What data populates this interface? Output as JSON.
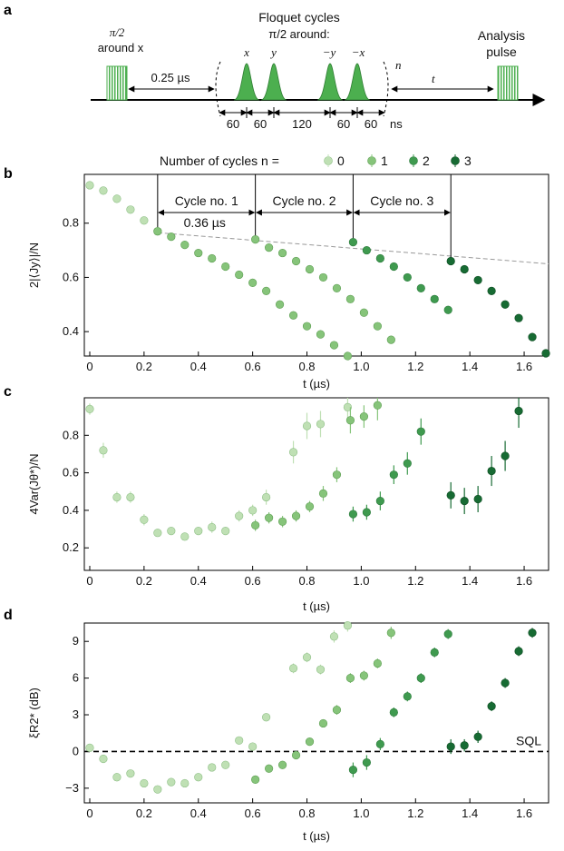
{
  "colors": {
    "n0": "#bfe0b4",
    "n1": "#86c47a",
    "n2": "#3f9a4f",
    "n3": "#176b33",
    "pulse": "#4caf4f",
    "dash": "#999999"
  },
  "panel_a": {
    "label": "a",
    "first_pulse_line1": "π/2",
    "first_pulse_line2": "around x",
    "delay_label": "0.25 µs",
    "floquet_title": "Floquet cycles",
    "floquet_sub": "π/2 around:",
    "axes": [
      "x",
      "y",
      "−y",
      "−x"
    ],
    "n_label": "n",
    "t_label": "t",
    "analysis_line1": "Analysis",
    "analysis_line2": "pulse",
    "durations": [
      "60",
      "60",
      "120",
      "60",
      "60"
    ],
    "unit": "ns"
  },
  "legend": {
    "title": "Number of cycles n =",
    "items": [
      "0",
      "1",
      "2",
      "3"
    ]
  },
  "chart_data": [
    {
      "panel": "b",
      "type": "scatter",
      "xlabel": "t (µs)",
      "ylabel": "2|⟨Jy⟩|/N",
      "xlim": [
        -0.02,
        1.69
      ],
      "ylim": [
        0.31,
        0.98
      ],
      "xticks": [
        "0",
        "0.2",
        "0.4",
        "0.6",
        "0.8",
        "1.0",
        "1.2",
        "1.4",
        "1.6"
      ],
      "yticks": [
        "0.4",
        "0.6",
        "0.8"
      ],
      "cycle_labels": [
        "Cycle no. 1",
        "Cycle no. 2",
        "Cycle no. 3"
      ],
      "cycle_boundaries": [
        0.25,
        0.61,
        0.97,
        1.33
      ],
      "cycle_duration_label": "0.36 µs",
      "trend_line": {
        "x": [
          0.25,
          1.69
        ],
        "y": [
          0.765,
          0.65
        ]
      },
      "series": [
        {
          "name": "0",
          "x": [
            0.0,
            0.05,
            0.1,
            0.15,
            0.2,
            0.25
          ],
          "y": [
            0.94,
            0.92,
            0.89,
            0.85,
            0.81,
            0.77
          ]
        },
        {
          "name": "1",
          "x": [
            0.25,
            0.3,
            0.35,
            0.4,
            0.45,
            0.5,
            0.55,
            0.6,
            0.65,
            0.7,
            0.75,
            0.8,
            0.85,
            0.9,
            0.95
          ],
          "y": [
            0.77,
            0.75,
            0.72,
            0.69,
            0.67,
            0.64,
            0.61,
            0.58,
            0.55,
            0.5,
            0.46,
            0.42,
            0.39,
            0.35,
            0.31
          ]
        },
        {
          "name": "1",
          "x": [
            0.61,
            0.66,
            0.71,
            0.76,
            0.81,
            0.86,
            0.91,
            0.96,
            1.01,
            1.06,
            1.11
          ],
          "y": [
            0.74,
            0.71,
            0.69,
            0.66,
            0.63,
            0.6,
            0.56,
            0.52,
            0.47,
            0.42,
            0.37
          ]
        },
        {
          "name": "2",
          "x": [
            0.97,
            1.02,
            1.07,
            1.12,
            1.17,
            1.22,
            1.27,
            1.32
          ],
          "y": [
            0.73,
            0.7,
            0.67,
            0.64,
            0.6,
            0.56,
            0.52,
            0.48
          ]
        },
        {
          "name": "3",
          "x": [
            1.33,
            1.38,
            1.43,
            1.48,
            1.53,
            1.58,
            1.63,
            1.68
          ],
          "y": [
            0.66,
            0.63,
            0.59,
            0.55,
            0.5,
            0.45,
            0.38,
            0.32
          ]
        }
      ]
    },
    {
      "panel": "c",
      "type": "scatter",
      "xlabel": "t (µs)",
      "ylabel": "4Var(Jθ*)/N",
      "xlim": [
        -0.02,
        1.69
      ],
      "ylim": [
        0.08,
        1.0
      ],
      "xticks": [
        "0",
        "0.2",
        "0.4",
        "0.6",
        "0.8",
        "1.0",
        "1.2",
        "1.4",
        "1.6"
      ],
      "yticks": [
        "0.2",
        "0.4",
        "0.6",
        "0.8"
      ],
      "series": [
        {
          "name": "0",
          "x": [
            0.0,
            0.05,
            0.1,
            0.15,
            0.2,
            0.25,
            0.3,
            0.35,
            0.4,
            0.45,
            0.5,
            0.55,
            0.6,
            0.65,
            0.75,
            0.8,
            0.85,
            0.95
          ],
          "y": [
            0.94,
            0.72,
            0.47,
            0.47,
            0.35,
            0.28,
            0.29,
            0.26,
            0.29,
            0.31,
            0.29,
            0.37,
            0.4,
            0.47,
            0.71,
            0.85,
            0.86,
            0.95
          ],
          "err": [
            0.03,
            0.04,
            0.03,
            0.03,
            0.03,
            0.02,
            0.02,
            0.02,
            0.02,
            0.03,
            0.02,
            0.03,
            0.03,
            0.04,
            0.06,
            0.07,
            0.07,
            0.08
          ]
        },
        {
          "name": "1",
          "x": [
            0.61,
            0.66,
            0.71,
            0.76,
            0.81,
            0.86,
            0.91,
            0.96,
            1.01,
            1.06
          ],
          "y": [
            0.32,
            0.36,
            0.34,
            0.37,
            0.42,
            0.49,
            0.59,
            0.88,
            0.9,
            0.96
          ],
          "err": [
            0.03,
            0.03,
            0.03,
            0.03,
            0.03,
            0.04,
            0.04,
            0.07,
            0.06,
            0.08
          ]
        },
        {
          "name": "2",
          "x": [
            0.97,
            1.02,
            1.07,
            1.12,
            1.17,
            1.22
          ],
          "y": [
            0.38,
            0.39,
            0.45,
            0.59,
            0.65,
            0.82
          ],
          "err": [
            0.04,
            0.04,
            0.05,
            0.05,
            0.06,
            0.07
          ]
        },
        {
          "name": "3",
          "x": [
            1.33,
            1.38,
            1.43,
            1.48,
            1.53,
            1.58
          ],
          "y": [
            0.48,
            0.45,
            0.46,
            0.61,
            0.69,
            0.93
          ],
          "err": [
            0.07,
            0.07,
            0.07,
            0.08,
            0.08,
            0.09
          ]
        }
      ]
    },
    {
      "panel": "d",
      "type": "scatter",
      "xlabel": "t (µs)",
      "ylabel": "ξR2* (dB)",
      "xlim": [
        -0.02,
        1.69
      ],
      "ylim": [
        -4.2,
        10.5
      ],
      "xticks": [
        "0",
        "0.2",
        "0.4",
        "0.6",
        "0.8",
        "1.0",
        "1.2",
        "1.4",
        "1.6"
      ],
      "yticks": [
        "−3",
        "0",
        "3",
        "6",
        "9"
      ],
      "reference_line": {
        "y": 0,
        "label": "SQL"
      },
      "series": [
        {
          "name": "0",
          "x": [
            0.0,
            0.05,
            0.1,
            0.15,
            0.2,
            0.25,
            0.3,
            0.35,
            0.4,
            0.45,
            0.5,
            0.55,
            0.6,
            0.65,
            0.75,
            0.8,
            0.85,
            0.9,
            0.95
          ],
          "y": [
            0.3,
            -0.6,
            -2.1,
            -1.8,
            -2.6,
            -3.1,
            -2.5,
            -2.6,
            -2.1,
            -1.3,
            -1.1,
            0.9,
            0.4,
            2.8,
            6.8,
            7.7,
            6.7,
            9.4,
            10.3
          ],
          "err": [
            0.2,
            0.2,
            0.3,
            0.3,
            0.3,
            0.3,
            0.3,
            0.3,
            0.3,
            0.3,
            0.3,
            0.3,
            0.3,
            0.3,
            0.4,
            0.4,
            0.4,
            0.5,
            0.5
          ]
        },
        {
          "name": "1",
          "x": [
            0.61,
            0.66,
            0.71,
            0.76,
            0.81,
            0.86,
            0.91,
            0.96,
            1.01,
            1.06,
            1.11
          ],
          "y": [
            -2.3,
            -1.4,
            -1.1,
            -0.3,
            0.8,
            2.3,
            3.4,
            6.0,
            6.2,
            7.2,
            9.7
          ],
          "err": [
            0.3,
            0.3,
            0.3,
            0.3,
            0.3,
            0.3,
            0.4,
            0.4,
            0.4,
            0.4,
            0.5
          ]
        },
        {
          "name": "2",
          "x": [
            0.97,
            1.02,
            1.07,
            1.12,
            1.17,
            1.22,
            1.27,
            1.32
          ],
          "y": [
            -1.5,
            -0.9,
            0.6,
            3.2,
            4.5,
            6.0,
            8.1,
            9.6
          ],
          "err": [
            0.6,
            0.6,
            0.5,
            0.4,
            0.4,
            0.4,
            0.4,
            0.4
          ]
        },
        {
          "name": "3",
          "x": [
            1.33,
            1.38,
            1.43,
            1.48,
            1.53,
            1.58,
            1.63
          ],
          "y": [
            0.4,
            0.5,
            1.2,
            3.7,
            5.6,
            8.2,
            9.7
          ],
          "err": [
            0.6,
            0.5,
            0.5,
            0.4,
            0.4,
            0.4,
            0.4
          ]
        }
      ]
    }
  ]
}
